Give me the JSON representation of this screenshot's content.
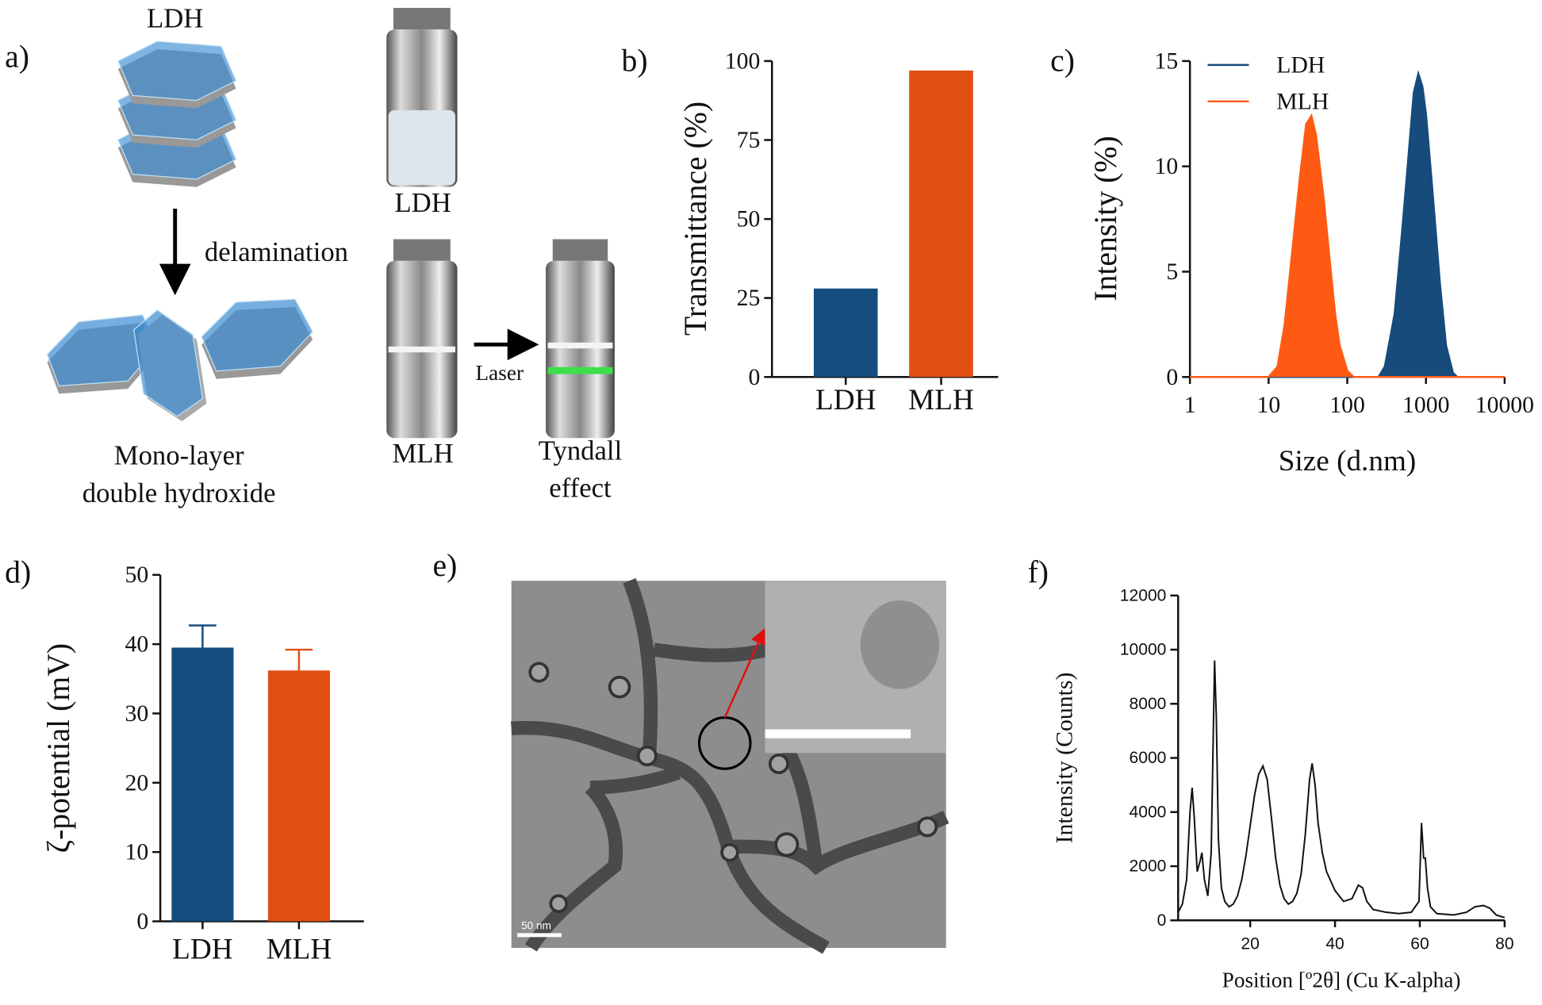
{
  "chart_data": [
    {
      "type": "bar",
      "label": "b)",
      "ylabel": "Transmittance (%)",
      "categories": [
        "LDH",
        "MLH"
      ],
      "values": [
        28,
        97
      ],
      "colors": [
        "#154d7e",
        "#e04e14"
      ],
      "ylim": [
        0,
        100
      ],
      "yticks": [
        0,
        25,
        50,
        75,
        100
      ]
    },
    {
      "type": "line",
      "label": "c)",
      "xlabel": "Size (d.nm)",
      "ylabel": "Intensity (%)",
      "log_x": true,
      "area": true,
      "legend": "upper left",
      "xlim": [
        1,
        10000
      ],
      "xticks": [
        1,
        10,
        100,
        1000,
        10000
      ],
      "ylim": [
        0,
        15
      ],
      "yticks": [
        0,
        5,
        10,
        15
      ],
      "series": [
        {
          "name": "LDH",
          "color": "#164b7c",
          "x": [
            1,
            250,
            300,
            400,
            500,
            600,
            700,
            800,
            900,
            1000,
            1200,
            1500,
            1800,
            2200,
            2500,
            10000
          ],
          "values": [
            0,
            0,
            0.5,
            3,
            7,
            10.5,
            13.5,
            14.4,
            13.8,
            12.5,
            9,
            4.5,
            1.5,
            0.2,
            0,
            0
          ]
        },
        {
          "name": "MLH",
          "color": "#ff5a14",
          "x": [
            1,
            10,
            13,
            16,
            20,
            25,
            30,
            35,
            40,
            50,
            60,
            70,
            80,
            100,
            120,
            10000
          ],
          "values": [
            0,
            0,
            0.5,
            2.5,
            6,
            9.5,
            12,
            12.4,
            11.5,
            8.5,
            5.5,
            3,
            1.5,
            0.3,
            0,
            0
          ]
        }
      ]
    },
    {
      "type": "bar",
      "label": "d)",
      "ylabel": "ζ-potential (mV)",
      "categories": [
        "LDH",
        "MLH"
      ],
      "values": [
        39.5,
        36.2
      ],
      "errors": [
        3.2,
        3
      ],
      "colors": [
        "#154d7e",
        "#e04e14"
      ],
      "ylim": [
        0,
        50
      ],
      "yticks": [
        0,
        10,
        20,
        30,
        40,
        50
      ]
    },
    {
      "type": "line",
      "label": "f)",
      "xlabel": "Position [º2θ] (Cu K-alpha)",
      "ylabel": "Intensity (Counts)",
      "xlim": [
        3,
        80
      ],
      "xticks": [
        20,
        40,
        60,
        80
      ],
      "ylim": [
        0,
        12000
      ],
      "yticks": [
        0,
        2000,
        4000,
        6000,
        8000,
        10000,
        12000
      ],
      "series": [
        {
          "color": "#111111",
          "x": [
            3,
            4,
            5,
            5.8,
            6.3,
            6.8,
            7.5,
            8.2,
            8.6,
            9.2,
            10,
            10.8,
            11.3,
            11.6,
            12,
            12.5,
            13.2,
            14,
            15,
            16,
            17,
            18,
            19,
            20,
            21,
            22,
            23,
            24,
            25,
            26,
            27,
            28,
            29,
            30,
            31,
            32,
            33,
            34,
            34.6,
            35.3,
            36,
            37,
            38,
            40,
            42,
            44,
            45.5,
            46.5,
            47.5,
            49,
            52,
            55,
            58,
            59.8,
            60.4,
            60.9,
            61.3,
            61.8,
            62.5,
            64,
            68,
            71,
            73,
            75,
            76.5,
            78,
            80
          ],
          "values": [
            300,
            600,
            1500,
            4000,
            4900,
            3800,
            1800,
            2200,
            2500,
            1500,
            900,
            2500,
            7000,
            9600,
            7500,
            3000,
            1200,
            700,
            500,
            600,
            900,
            1500,
            2400,
            3500,
            4600,
            5400,
            5700,
            5200,
            3800,
            2300,
            1300,
            800,
            600,
            700,
            1000,
            1700,
            3200,
            5200,
            5800,
            5000,
            3600,
            2500,
            1800,
            1100,
            700,
            800,
            1300,
            1200,
            700,
            400,
            300,
            250,
            300,
            700,
            3600,
            2300,
            2300,
            1200,
            500,
            250,
            200,
            300,
            500,
            550,
            450,
            200,
            100
          ]
        }
      ]
    }
  ],
  "figure_a": {
    "label": "a)",
    "stack_label": "LDH",
    "arrow_label": "delamination",
    "product_label": [
      "Mono-layer",
      "double hydroxide"
    ],
    "vial_labels": [
      "LDH",
      "MLH"
    ],
    "laser_label": "Laser",
    "tyndall_label": [
      "Tyndall",
      "effect"
    ]
  },
  "figure_e": {
    "label": "e)",
    "scale_bar": "50 nm"
  }
}
